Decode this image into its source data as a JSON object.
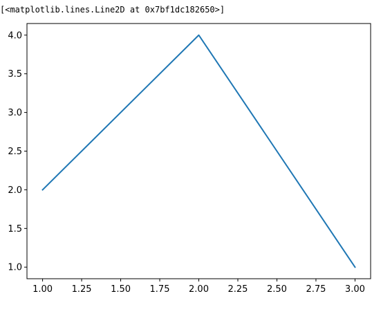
{
  "output": {
    "repr_text": "[<matplotlib.lines.Line2D at 0x7bf1dc182650>]"
  },
  "chart_data": {
    "type": "line",
    "title": "",
    "xlabel": "",
    "ylabel": "",
    "x": [
      1,
      2,
      3
    ],
    "series": [
      {
        "values": [
          2,
          4,
          1
        ],
        "color": "#1f77b4"
      }
    ],
    "xlim": [
      0.9,
      3.1
    ],
    "ylim": [
      0.85,
      4.15
    ],
    "xticks": [
      1.0,
      1.25,
      1.5,
      1.75,
      2.0,
      2.25,
      2.5,
      2.75,
      3.0
    ],
    "xtick_labels": [
      "1.00",
      "1.25",
      "1.50",
      "1.75",
      "2.00",
      "2.25",
      "2.50",
      "2.75",
      "3.00"
    ],
    "yticks": [
      1.0,
      1.5,
      2.0,
      2.5,
      3.0,
      3.5,
      4.0
    ],
    "ytick_labels": [
      "1.0",
      "1.5",
      "2.0",
      "2.5",
      "3.0",
      "3.5",
      "4.0"
    ],
    "grid": false,
    "legend": "none"
  }
}
